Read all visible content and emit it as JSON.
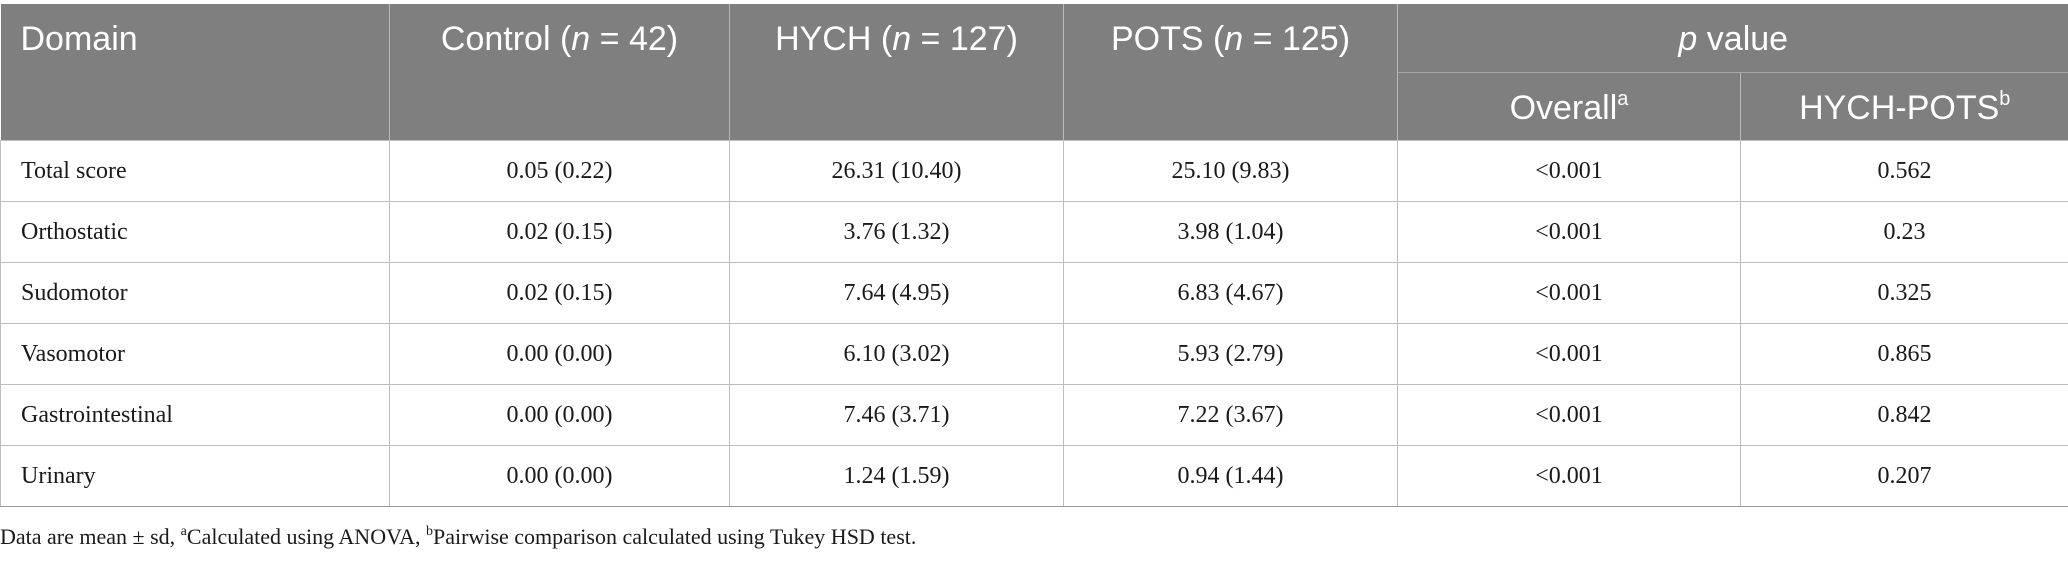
{
  "table": {
    "headers": {
      "domain": "Domain",
      "control_prefix": "Control (",
      "control_n": "n",
      "control_suffix": " = 42)",
      "hych_prefix": "HYCH (",
      "hych_n": "n",
      "hych_suffix": " = 127)",
      "pots_prefix": "POTS (",
      "pots_n": "n",
      "pots_suffix": " = 125)",
      "pvalue_p": "p",
      "pvalue_suffix": " value",
      "overall": "Overall",
      "overall_sup": "a",
      "pairwise": "HYCH-POTS",
      "pairwise_sup": "b"
    },
    "rows": [
      {
        "domain": "Total score",
        "control": "0.05 (0.22)",
        "hych": "26.31 (10.40)",
        "pots": "25.10 (9.83)",
        "overall": "<0.001",
        "pairwise": "0.562"
      },
      {
        "domain": "Orthostatic",
        "control": "0.02 (0.15)",
        "hych": "3.76 (1.32)",
        "pots": "3.98 (1.04)",
        "overall": "<0.001",
        "pairwise": "0.23"
      },
      {
        "domain": "Sudomotor",
        "control": "0.02 (0.15)",
        "hych": "7.64 (4.95)",
        "pots": "6.83 (4.67)",
        "overall": "<0.001",
        "pairwise": "0.325"
      },
      {
        "domain": "Vasomotor",
        "control": "0.00 (0.00)",
        "hych": "6.10 (3.02)",
        "pots": "5.93 (2.79)",
        "overall": "<0.001",
        "pairwise": "0.865"
      },
      {
        "domain": "Gastrointestinal",
        "control": "0.00 (0.00)",
        "hych": "7.46 (3.71)",
        "pots": "7.22 (3.67)",
        "overall": "<0.001",
        "pairwise": "0.842"
      },
      {
        "domain": "Urinary",
        "control": "0.00 (0.00)",
        "hych": "1.24 (1.59)",
        "pots": "0.94 (1.44)",
        "overall": "<0.001",
        "pairwise": "0.207"
      }
    ]
  },
  "footnote": {
    "part1": "Data are mean ± sd, ",
    "sup_a": "a",
    "part2": "Calculated using ANOVA, ",
    "sup_b": "b",
    "part3": "Pairwise comparison calculated using Tukey HSD test."
  },
  "colors": {
    "header_bg": "#7f7f7f",
    "header_text": "#ffffff",
    "grid_line": "#bdbdbd",
    "body_text": "#1a1a1a"
  }
}
